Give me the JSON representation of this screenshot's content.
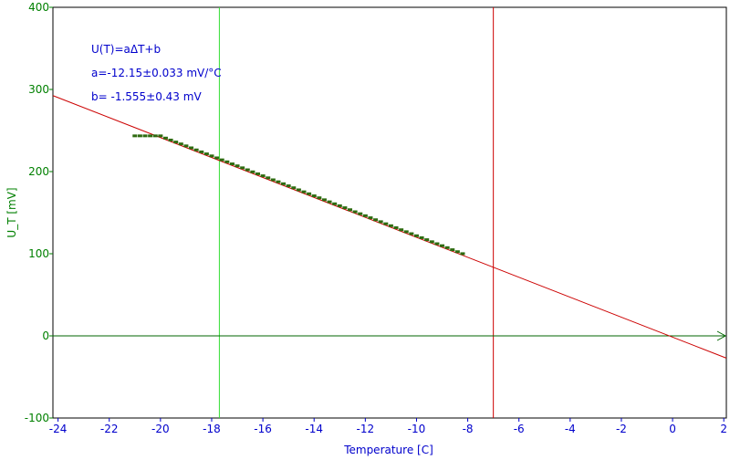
{
  "chart_data": {
    "type": "scatter",
    "title": "",
    "xlabel": "Temperature [C]",
    "ylabel": "U_T [mV]",
    "xlim": [
      -24.2,
      2.1
    ],
    "ylim": [
      -100,
      400
    ],
    "x_ticks": [
      -24,
      -22,
      -20,
      -18,
      -16,
      -14,
      -12,
      -10,
      -8,
      -6,
      -4,
      -2,
      0,
      2
    ],
    "y_ticks": [
      -100,
      0,
      100,
      200,
      300,
      400
    ],
    "grid": false,
    "colors": {
      "x_axis": "#0000cc",
      "y_axis": "#008000",
      "frame": "#000000",
      "points": "#2e6b10",
      "fit_line": "#cc0000",
      "annotation": "#0000cc",
      "marker_line_green": "#33dd33",
      "marker_line_red": "#cc0000",
      "zero_line": "#006600"
    },
    "annotations": [
      "U(T)=aΔT+b",
      "a=-12.15±0.033 mV/°C",
      "b= -1.555±0.43 mV"
    ],
    "fit": {
      "label": "U(T)=aΔT+b",
      "slope": -12.15,
      "intercept": -1.555
    },
    "cursor_lines": [
      {
        "name": "green-cursor",
        "x": -17.7
      },
      {
        "name": "red-cursor",
        "x": -7.0
      }
    ],
    "zero_line": {
      "y": 0
    },
    "series": [
      {
        "x": [
          -21.0,
          -20.8,
          -20.6,
          -20.4,
          -20.2,
          -20.0,
          -19.8,
          -19.6,
          -19.4,
          -19.2,
          -19.0,
          -18.8,
          -18.6,
          -18.4,
          -18.2,
          -18.0,
          -17.8,
          -17.6,
          -17.4,
          -17.2,
          -17.0,
          -16.8,
          -16.6,
          -16.4,
          -16.2,
          -16.0,
          -15.8,
          -15.6,
          -15.4,
          -15.2,
          -15.0,
          -14.8,
          -14.6,
          -14.4,
          -14.2,
          -14.0,
          -13.8,
          -13.6,
          -13.4,
          -13.2,
          -13.0,
          -12.8,
          -12.6,
          -12.4,
          -12.2,
          -12.0,
          -11.8,
          -11.6,
          -11.4,
          -11.2,
          -11.0,
          -10.8,
          -10.6,
          -10.4,
          -10.2,
          -10.0,
          -9.8,
          -9.6,
          -9.4,
          -9.2,
          -9.0,
          -8.8,
          -8.6,
          -8.4,
          -8.2
        ],
        "y": [
          243.5,
          243.5,
          243.5,
          243.5,
          243.5,
          243.5,
          240.8,
          238.4,
          236.0,
          233.7,
          231.3,
          228.9,
          226.4,
          224.0,
          221.6,
          219.1,
          216.7,
          214.3,
          211.9,
          209.4,
          207.0,
          204.6,
          202.2,
          199.7,
          197.3,
          194.9,
          192.4,
          190.0,
          187.6,
          185.2,
          182.7,
          180.3,
          177.8,
          175.4,
          173.0,
          170.5,
          168.1,
          165.7,
          163.2,
          160.8,
          158.4,
          156.0,
          153.6,
          151.1,
          148.7,
          146.3,
          143.8,
          141.4,
          139.0,
          136.5,
          134.1,
          131.7,
          129.2,
          126.8,
          124.4,
          121.9,
          119.5,
          117.1,
          114.6,
          112.2,
          109.8,
          107.4,
          104.9,
          102.5,
          100.1
        ]
      }
    ]
  }
}
